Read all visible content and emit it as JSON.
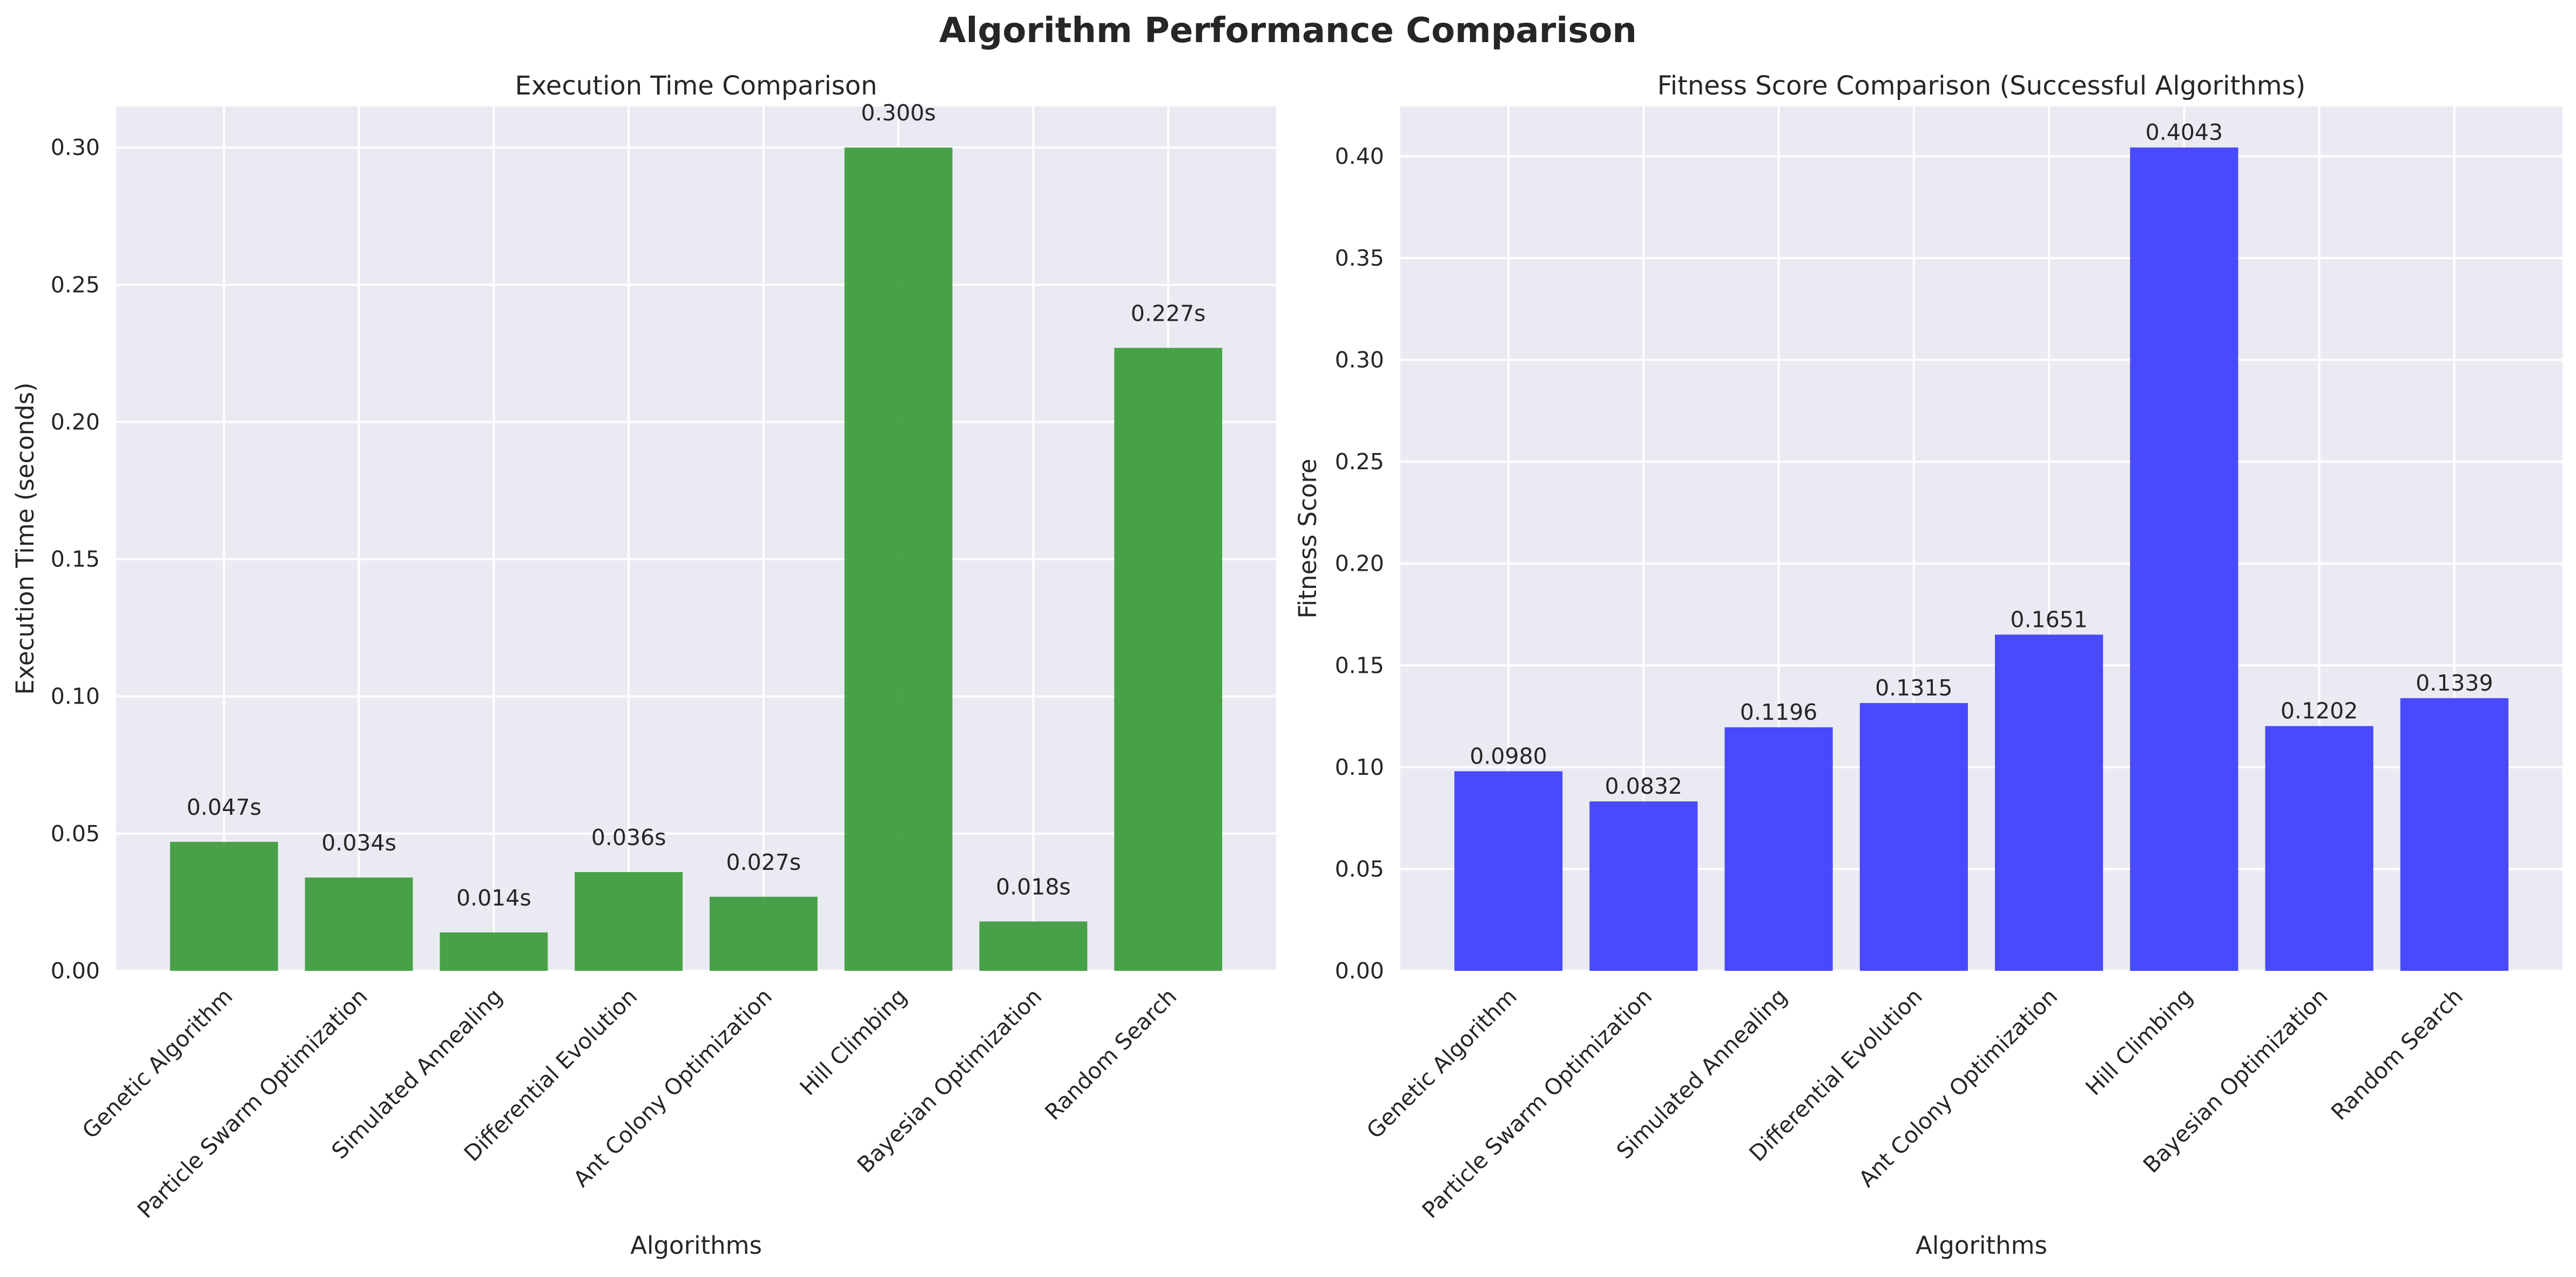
{
  "figure_title": "Algorithm Performance Comparison",
  "chart_data": [
    {
      "type": "bar",
      "title": "Execution Time Comparison",
      "xlabel": "Algorithms",
      "ylabel": "Execution Time (seconds)",
      "categories": [
        "Genetic Algorithm",
        "Particle Swarm Optimization",
        "Simulated Annealing",
        "Differential Evolution",
        "Ant Colony Optimization",
        "Hill Climbing",
        "Bayesian Optimization",
        "Random Search"
      ],
      "values": [
        0.047,
        0.034,
        0.014,
        0.036,
        0.027,
        0.3,
        0.018,
        0.227
      ],
      "value_labels": [
        "0.047s",
        "0.034s",
        "0.014s",
        "0.036s",
        "0.027s",
        "0.300s",
        "0.018s",
        "0.227s"
      ],
      "ylim": [
        0,
        0.315
      ],
      "yticks": [
        0.0,
        0.05,
        0.1,
        0.15,
        0.2,
        0.25,
        0.3
      ],
      "ytick_labels": [
        "0.00",
        "0.05",
        "0.10",
        "0.15",
        "0.20",
        "0.25",
        "0.30"
      ],
      "grid": true,
      "bar_color": "#3a9a3a"
    },
    {
      "type": "bar",
      "title": "Fitness Score Comparison (Successful Algorithms)",
      "xlabel": "Algorithms",
      "ylabel": "Fitness Score",
      "categories": [
        "Genetic Algorithm",
        "Particle Swarm Optimization",
        "Simulated Annealing",
        "Differential Evolution",
        "Ant Colony Optimization",
        "Hill Climbing",
        "Bayesian Optimization",
        "Random Search"
      ],
      "values": [
        0.098,
        0.0832,
        0.1196,
        0.1315,
        0.1651,
        0.4043,
        0.1202,
        0.1339
      ],
      "value_labels": [
        "0.0980",
        "0.0832",
        "0.1196",
        "0.1315",
        "0.1651",
        "0.4043",
        "0.1202",
        "0.1339"
      ],
      "ylim": [
        0,
        0.4245
      ],
      "yticks": [
        0.0,
        0.05,
        0.1,
        0.15,
        0.2,
        0.25,
        0.3,
        0.35,
        0.4
      ],
      "ytick_labels": [
        "0.00",
        "0.05",
        "0.10",
        "0.15",
        "0.20",
        "0.25",
        "0.30",
        "0.35",
        "0.40"
      ],
      "grid": true,
      "bar_color": "#3b3bff"
    }
  ]
}
